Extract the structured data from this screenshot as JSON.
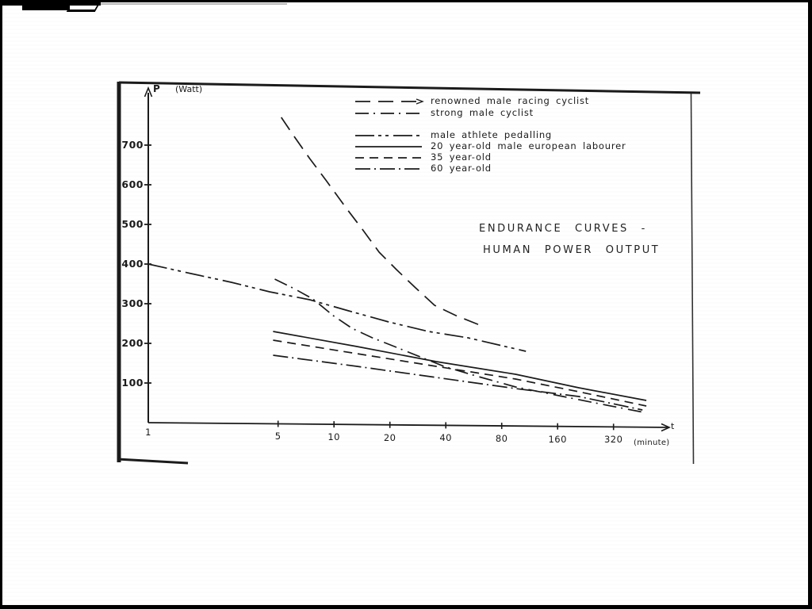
{
  "page": {
    "ink": "#1b1b1b",
    "background": "#ffffff"
  },
  "chart_data": {
    "type": "line",
    "title_line1": "ENDURANCE CURVES -",
    "title_line2": "HUMAN POWER OUTPUT",
    "x_axis": {
      "symbol": "t",
      "unit": "(minute)",
      "scale": "log2",
      "ticks": [
        1,
        5,
        10,
        20,
        40,
        80,
        160,
        320
      ]
    },
    "y_axis": {
      "symbol": "P",
      "unit": "(Watt)",
      "scale": "linear",
      "ticks": [
        700,
        600,
        500,
        400,
        300,
        200,
        100
      ]
    },
    "legend": [
      {
        "label": "renowned male racing cyclist",
        "pattern": "long-dash",
        "group": 1
      },
      {
        "label": "strong male cyclist",
        "pattern": "dash-dot",
        "group": 1
      },
      {
        "label": "male athlete pedalling",
        "pattern": "dash-dot-dot",
        "group": 2
      },
      {
        "label": "20 year-old male european labourer",
        "pattern": "solid",
        "group": 2
      },
      {
        "label": "35 year-old",
        "pattern": "dashed",
        "group": 2
      },
      {
        "label": "60 year-old",
        "pattern": "long-dash-dot",
        "group": 2
      }
    ],
    "series": [
      {
        "name": "renowned male racing cyclist",
        "pattern": "long-dash",
        "points_t_watt": [
          [
            5.2,
            770
          ],
          [
            6.1,
            722
          ],
          [
            7.4,
            666
          ],
          [
            9.1,
            610
          ],
          [
            11.6,
            542
          ],
          [
            14.3,
            486
          ],
          [
            17.5,
            430
          ],
          [
            21.7,
            386
          ],
          [
            27.2,
            342
          ],
          [
            34.8,
            296
          ],
          [
            45.4,
            270
          ],
          [
            61,
            246
          ]
        ]
      },
      {
        "name": "strong male cyclist",
        "pattern": "dash-dot",
        "points_t_watt": [
          [
            4.8,
            362
          ],
          [
            6.1,
            338
          ],
          [
            7.7,
            312
          ],
          [
            9.9,
            270
          ],
          [
            12.5,
            238
          ],
          [
            16.1,
            214
          ],
          [
            21.7,
            190
          ],
          [
            29.1,
            166
          ],
          [
            39.1,
            142
          ],
          [
            58,
            118
          ],
          [
            95,
            90
          ],
          [
            155,
            70
          ],
          [
            280,
            46
          ],
          [
            466,
            26
          ]
        ]
      },
      {
        "name": "male athlete pedalling",
        "pattern": "dash-dot-dot",
        "points_t_watt": [
          [
            1,
            400
          ],
          [
            1.7,
            376
          ],
          [
            2.8,
            354
          ],
          [
            4.5,
            330
          ],
          [
            7.4,
            310
          ],
          [
            12,
            282
          ],
          [
            19.7,
            254
          ],
          [
            32.2,
            230
          ],
          [
            52.7,
            214
          ],
          [
            108,
            180
          ]
        ]
      },
      {
        "name": "20 year-old male european labourer",
        "pattern": "solid",
        "points_t_watt": [
          [
            4.7,
            230
          ],
          [
            13.3,
            192
          ],
          [
            35.5,
            154
          ],
          [
            95,
            122
          ],
          [
            208,
            88
          ],
          [
            481,
            56
          ]
        ]
      },
      {
        "name": "35 year-old",
        "pattern": "dashed",
        "points_t_watt": [
          [
            4.7,
            208
          ],
          [
            13.3,
            174
          ],
          [
            35.5,
            142
          ],
          [
            95,
            110
          ],
          [
            208,
            78
          ],
          [
            481,
            42
          ]
        ]
      },
      {
        "name": "60 year-old",
        "pattern": "long-dash-dot",
        "points_t_watt": [
          [
            4.7,
            170
          ],
          [
            13.3,
            142
          ],
          [
            35.5,
            114
          ],
          [
            95,
            86
          ],
          [
            208,
            66
          ],
          [
            458,
            32
          ]
        ]
      }
    ]
  }
}
